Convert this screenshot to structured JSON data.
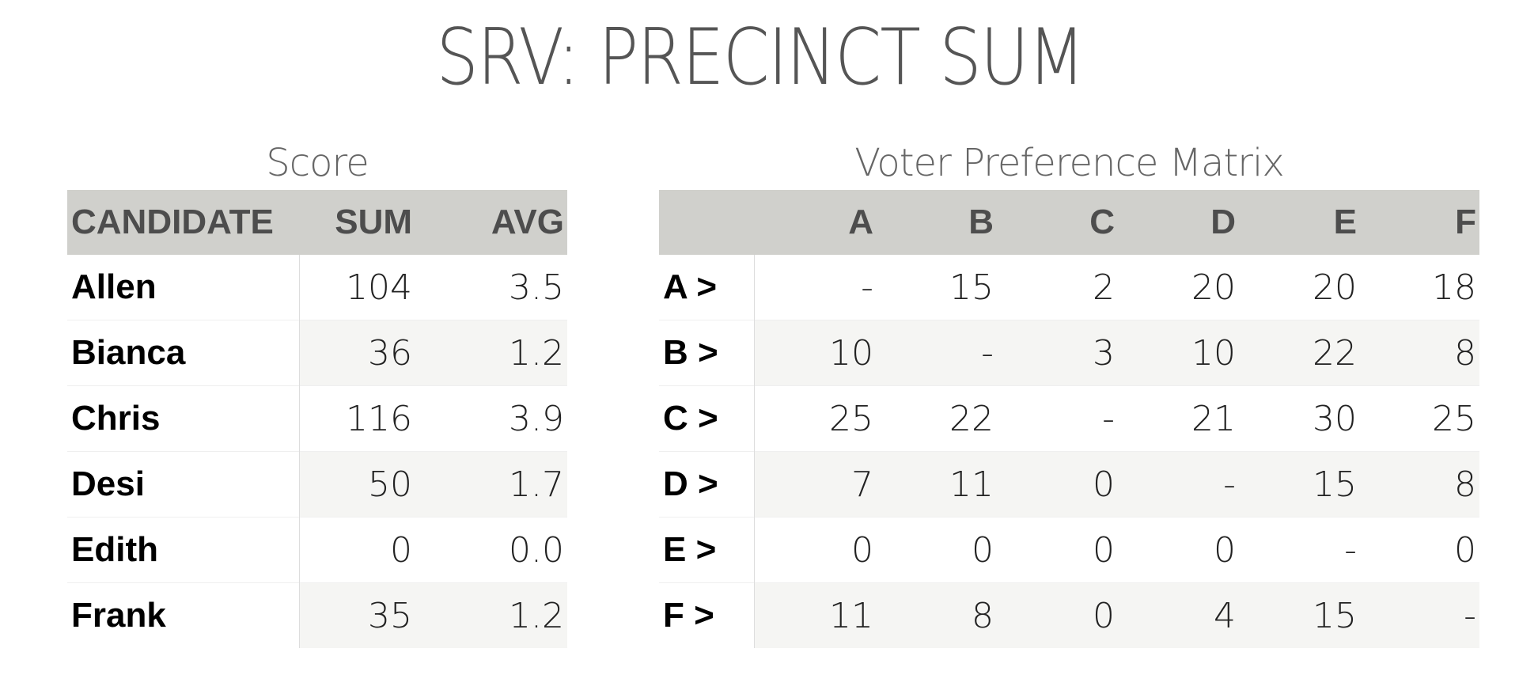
{
  "title": "SRV: PRECINCT SUM",
  "score_table": {
    "caption": "Score",
    "headers": [
      "CANDIDATE",
      "SUM",
      "AVG"
    ],
    "rows": [
      {
        "candidate": "Allen",
        "sum": "104",
        "avg": "3.5"
      },
      {
        "candidate": "Bianca",
        "sum": "36",
        "avg": "1.2"
      },
      {
        "candidate": "Chris",
        "sum": "116",
        "avg": "3.9"
      },
      {
        "candidate": "Desi",
        "sum": "50",
        "avg": "1.7"
      },
      {
        "candidate": "Edith",
        "sum": "0",
        "avg": "0.0"
      },
      {
        "candidate": "Frank",
        "sum": "35",
        "avg": "1.2"
      }
    ]
  },
  "matrix_table": {
    "caption": "Voter Preference Matrix",
    "columns": [
      "",
      "A",
      "B",
      "C",
      "D",
      "E",
      "F"
    ],
    "rows": [
      {
        "label": "A >",
        "values": [
          "-",
          "15",
          "2",
          "20",
          "20",
          "18"
        ]
      },
      {
        "label": "B >",
        "values": [
          "10",
          "-",
          "3",
          "10",
          "22",
          "8"
        ]
      },
      {
        "label": "C >",
        "values": [
          "25",
          "22",
          "-",
          "21",
          "30",
          "25"
        ]
      },
      {
        "label": "D >",
        "values": [
          "7",
          "11",
          "0",
          "-",
          "15",
          "8"
        ]
      },
      {
        "label": "E >",
        "values": [
          "0",
          "0",
          "0",
          "0",
          "-",
          "0"
        ]
      },
      {
        "label": "F >",
        "values": [
          "11",
          "8",
          "0",
          "4",
          "15",
          "-"
        ]
      }
    ]
  },
  "colors": {
    "header_bg": "#d0d0cc",
    "header_text": "#4d4d4d",
    "alt_row_bg": "#f5f5f3",
    "title_text": "#555555"
  }
}
